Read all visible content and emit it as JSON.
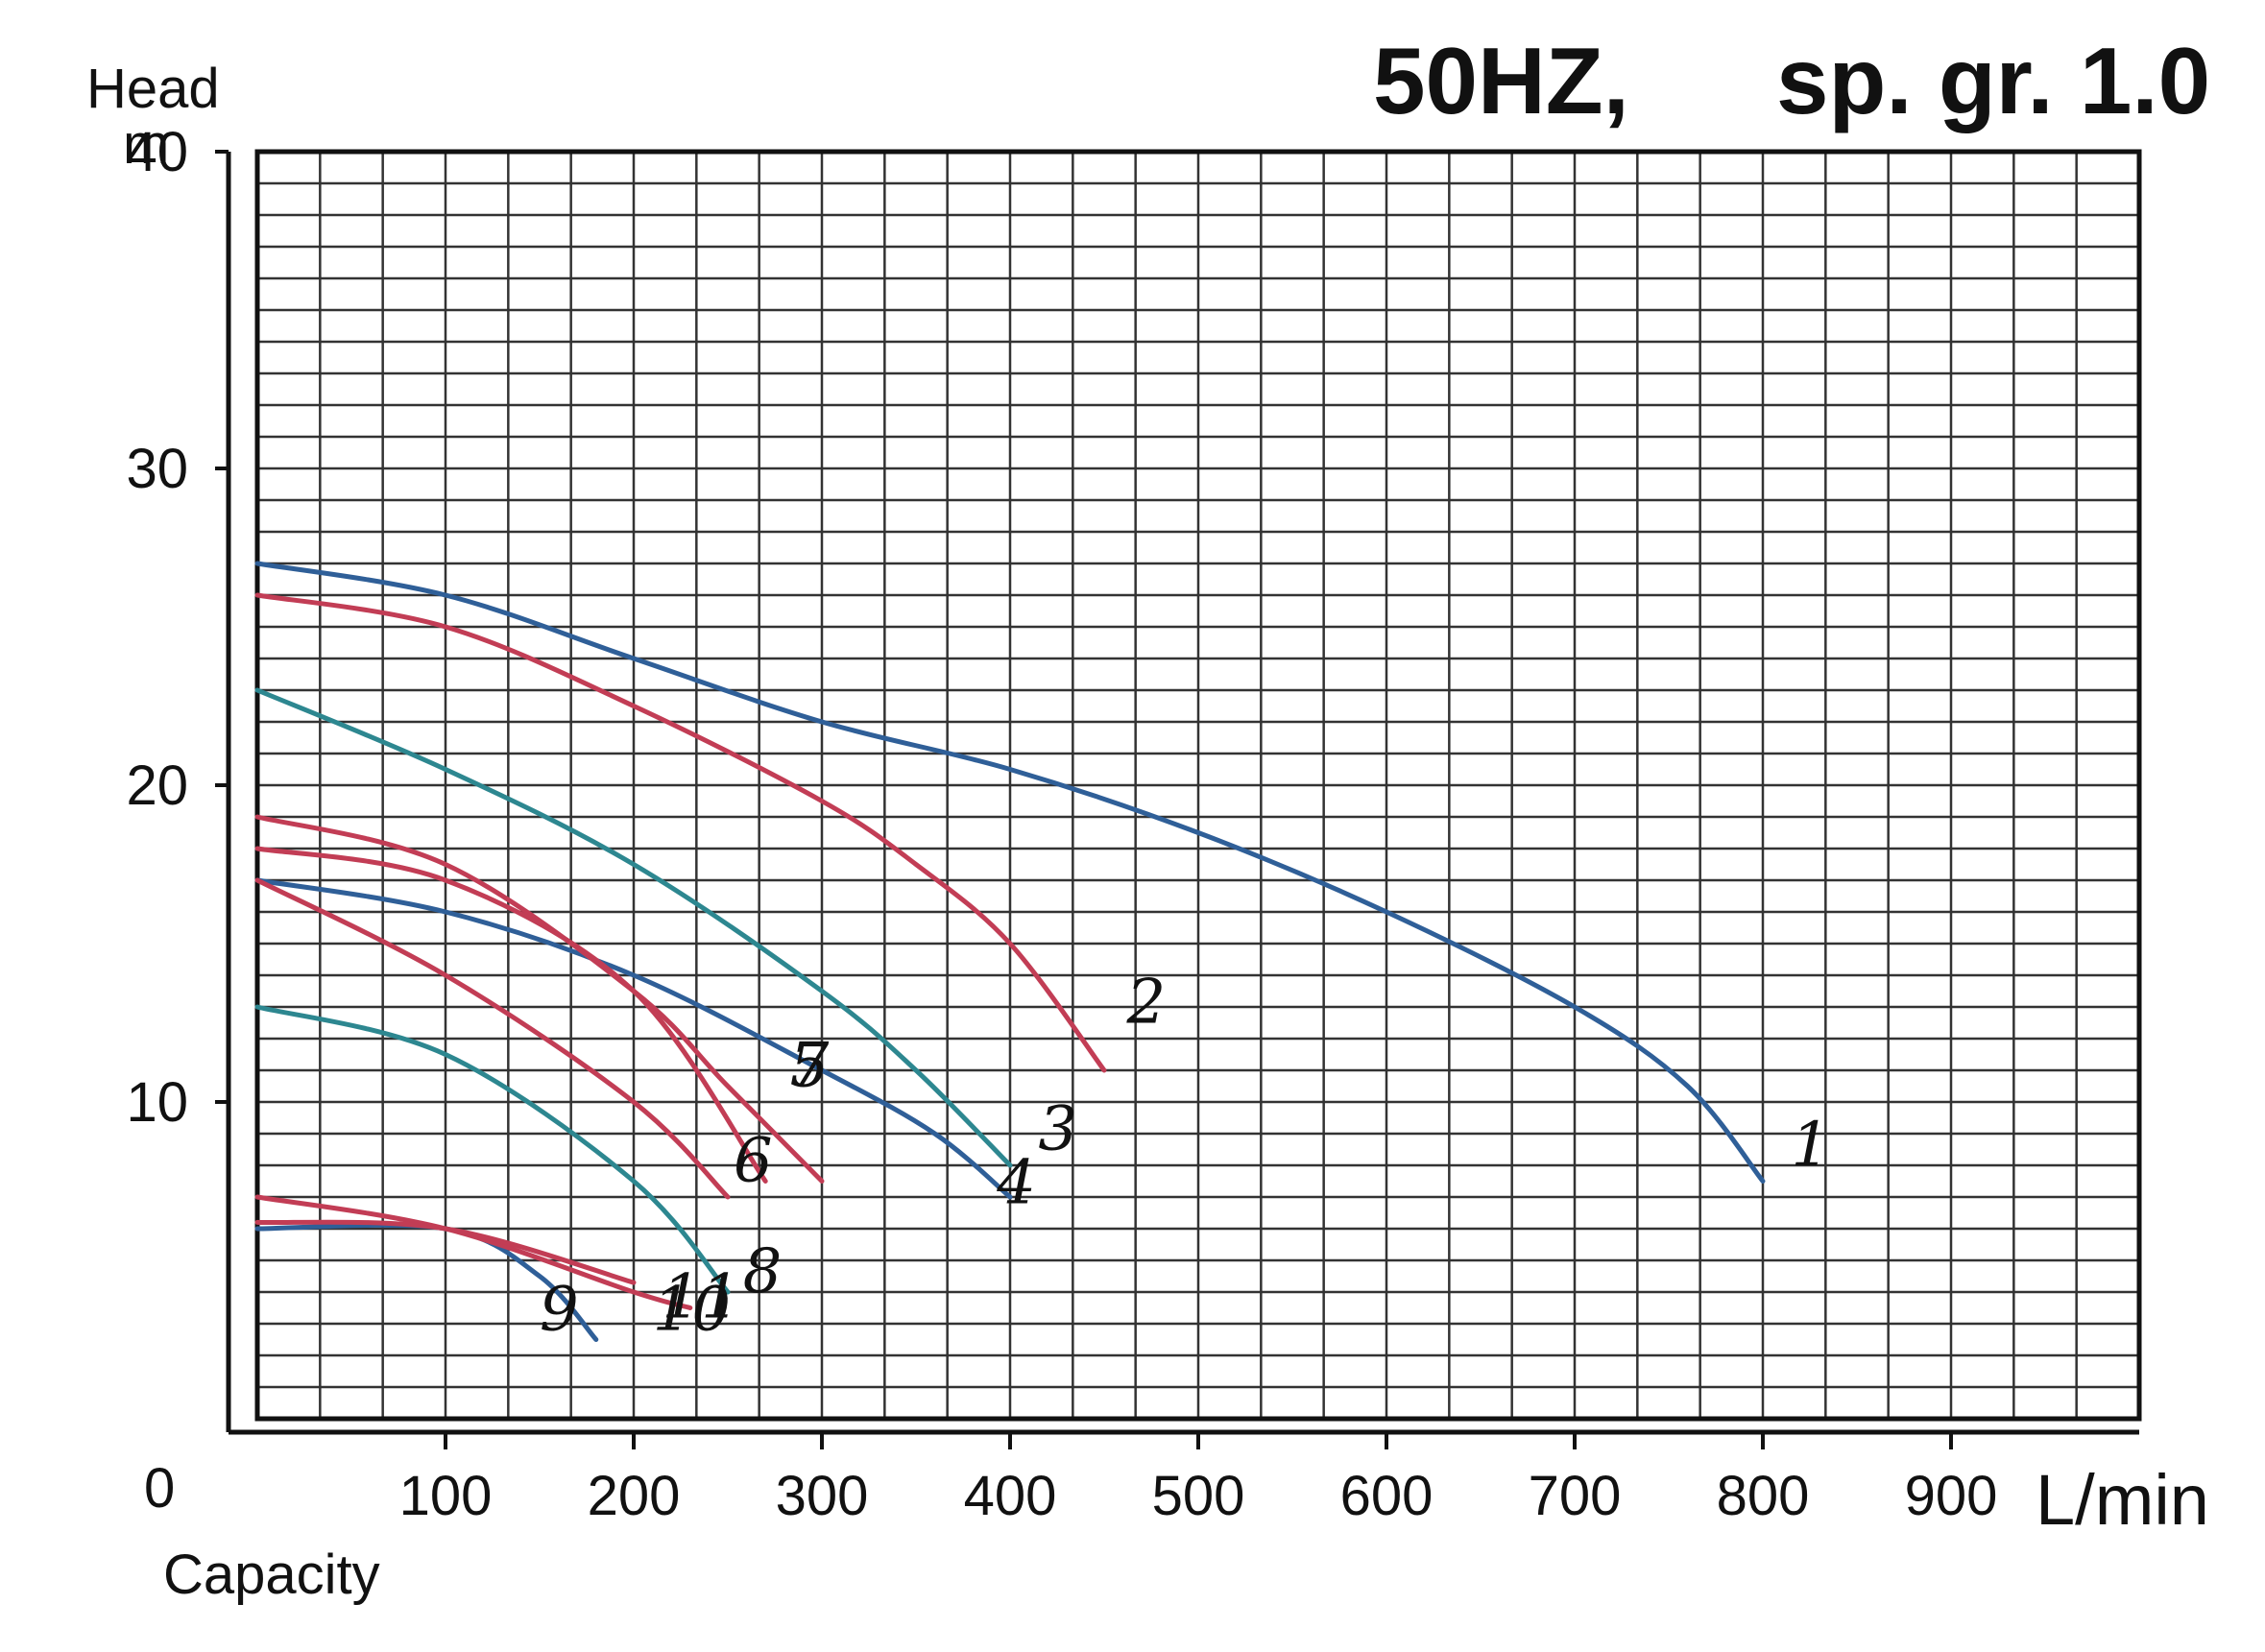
{
  "chart_data": {
    "type": "line",
    "title_left": "50HZ,",
    "title_right": "sp. gr. 1.0",
    "ylabel": "Head",
    "yunit": "m",
    "xlabel": "Capacity",
    "xunit": "L/min",
    "origin_label": "0",
    "xlim": [
      0,
      1000
    ],
    "ylim": [
      0,
      40
    ],
    "xticks": [
      100,
      200,
      300,
      400,
      500,
      600,
      700,
      800,
      900
    ],
    "xtick_labels": [
      "100",
      "200",
      "300",
      "400",
      "500",
      "600",
      "700",
      "800",
      "900"
    ],
    "yticks": [
      10,
      20,
      30,
      40
    ],
    "ytick_labels": [
      "10",
      "20",
      "30",
      "40"
    ],
    "grid": true,
    "colors": {
      "blue": "#2f5f98",
      "red": "#c23d55",
      "teal": "#2d8790",
      "grid": "#333333",
      "frame": "#111111"
    },
    "series": [
      {
        "name": "1",
        "color": "blue",
        "x": [
          0,
          100,
          200,
          300,
          400,
          500,
          600,
          700,
          760,
          800
        ],
        "y": [
          27,
          26,
          24,
          22,
          20.5,
          18.5,
          16,
          13,
          10.5,
          7.5
        ],
        "label_x": 815,
        "label_y": 8
      },
      {
        "name": "2",
        "color": "red",
        "x": [
          0,
          100,
          200,
          300,
          350,
          400,
          450
        ],
        "y": [
          26,
          25,
          22.5,
          19.5,
          17.5,
          15,
          11
        ],
        "label_x": 462,
        "label_y": 12.5
      },
      {
        "name": "3",
        "color": "teal",
        "x": [
          0,
          100,
          200,
          300,
          350,
          400
        ],
        "y": [
          23,
          20.5,
          17.5,
          13.5,
          11,
          8
        ],
        "label_x": 415,
        "label_y": 8.5
      },
      {
        "name": "4",
        "color": "blue",
        "x": [
          0,
          100,
          200,
          300,
          360,
          400
        ],
        "y": [
          17,
          16,
          14,
          11,
          9,
          7
        ],
        "label_x": 393,
        "label_y": 6.8
      },
      {
        "name": "5",
        "color": "red",
        "x": [
          0,
          100,
          200,
          250,
          300
        ],
        "y": [
          19,
          17.5,
          13.5,
          10.5,
          7.5
        ],
        "label_x": 283,
        "label_y": 10.5
      },
      {
        "name": "6",
        "color": "red",
        "x": [
          0,
          100,
          200,
          250
        ],
        "y": [
          17,
          14,
          10,
          7
        ],
        "label_x": 253,
        "label_y": 7.5
      },
      {
        "name": "7",
        "color": "red",
        "x": [
          0,
          100,
          200,
          270
        ],
        "y": [
          18,
          17,
          13.5,
          7.5
        ],
        "label_x": 283,
        "label_y": 10.5
      },
      {
        "name": "8",
        "color": "teal",
        "x": [
          0,
          100,
          200,
          250
        ],
        "y": [
          13,
          11.5,
          7.5,
          4
        ],
        "label_x": 258,
        "label_y": 4
      },
      {
        "name": "9",
        "color": "blue",
        "x": [
          0,
          100,
          150,
          180
        ],
        "y": [
          6,
          6,
          4.5,
          2.5
        ],
        "label_x": 150,
        "label_y": 2.8
      },
      {
        "name": "10",
        "color": "red",
        "x": [
          0,
          100,
          200,
          230
        ],
        "y": [
          7,
          6,
          4,
          3.5
        ],
        "label_x": 210,
        "label_y": 2.8
      },
      {
        "name": "11",
        "color": "red",
        "x": [
          0,
          100,
          200
        ],
        "y": [
          6.2,
          6,
          4.3
        ],
        "label_x": 215,
        "label_y": 3.2
      }
    ]
  }
}
